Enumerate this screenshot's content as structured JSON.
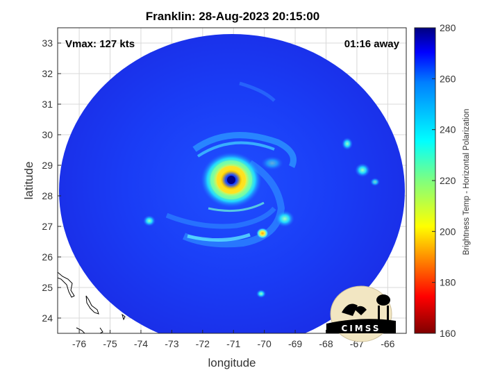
{
  "title": "Franklin: 28-Aug-2023 20:15:00",
  "overlay": {
    "vmax": "Vmax: 127 kts",
    "time_away": "01:16 away"
  },
  "axes": {
    "xlabel": "longitude",
    "ylabel": "latitude",
    "x_ticks": [
      "-76",
      "-75",
      "-74",
      "-73",
      "-72",
      "-71",
      "-70",
      "-69",
      "-68",
      "-67",
      "-66"
    ],
    "y_ticks": [
      "24",
      "25",
      "26",
      "27",
      "28",
      "29",
      "30",
      "31",
      "32",
      "33"
    ],
    "xlim": [
      -76.7,
      -65.4
    ],
    "ylim": [
      23.5,
      33.5
    ],
    "grid": true
  },
  "colorbar": {
    "label": "Brightness Temp - Horizontal Polarization",
    "ticks": [
      "280",
      "260",
      "240",
      "220",
      "200",
      "180",
      "160"
    ],
    "range": [
      160,
      280
    ],
    "colormap": "jet"
  },
  "storm": {
    "center_lon": -71.0,
    "center_lat": 28.5
  },
  "logo": {
    "text": "CIMSS"
  }
}
